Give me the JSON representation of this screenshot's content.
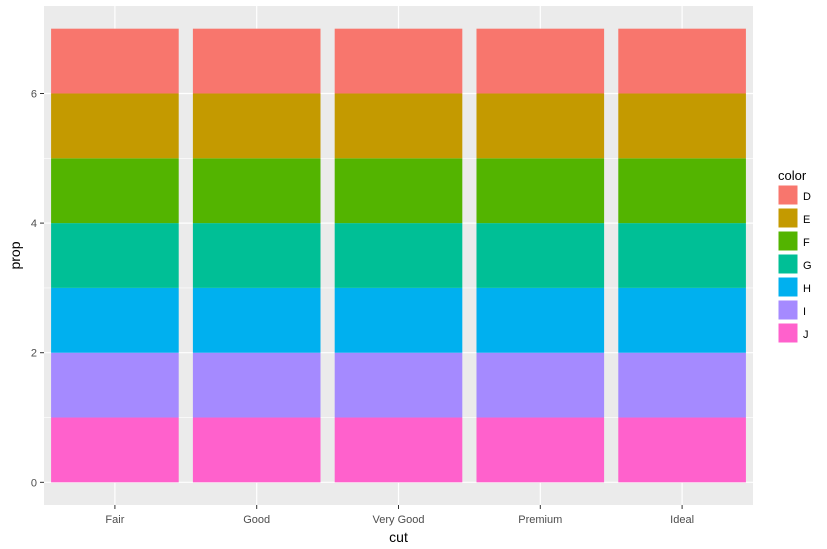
{
  "chart_data": {
    "type": "bar",
    "stacked": true,
    "categories": [
      "Fair",
      "Good",
      "Very Good",
      "Premium",
      "Ideal"
    ],
    "series": [
      {
        "name": "J",
        "color": "#FF61CC",
        "values": [
          1,
          1,
          1,
          1,
          1
        ]
      },
      {
        "name": "I",
        "color": "#A58AFF",
        "values": [
          1,
          1,
          1,
          1,
          1
        ]
      },
      {
        "name": "H",
        "color": "#00B0EF",
        "values": [
          1,
          1,
          1,
          1,
          1
        ]
      },
      {
        "name": "G",
        "color": "#00BF96",
        "values": [
          1,
          1,
          1,
          1,
          1
        ]
      },
      {
        "name": "F",
        "color": "#53B400",
        "values": [
          1,
          1,
          1,
          1,
          1
        ]
      },
      {
        "name": "E",
        "color": "#C49A00",
        "values": [
          1,
          1,
          1,
          1,
          1
        ]
      },
      {
        "name": "D",
        "color": "#F8766D",
        "values": [
          1,
          1,
          1,
          1,
          1
        ]
      }
    ],
    "xlabel": "cut",
    "ylabel": "prop",
    "ylim": [
      -0.35,
      7.35
    ],
    "yticks": [
      0,
      2,
      4,
      6
    ],
    "grid": true,
    "legend": {
      "title": "color",
      "placement": "right",
      "entries": [
        {
          "label": "D",
          "color": "#F8766D"
        },
        {
          "label": "E",
          "color": "#C49A00"
        },
        {
          "label": "F",
          "color": "#53B400"
        },
        {
          "label": "G",
          "color": "#00BF96"
        },
        {
          "label": "H",
          "color": "#00B0EF"
        },
        {
          "label": "I",
          "color": "#A58AFF"
        },
        {
          "label": "J",
          "color": "#FF61CC"
        }
      ]
    },
    "panel_background": "#EBEBEB",
    "grid_color": "#FFFFFF"
  }
}
